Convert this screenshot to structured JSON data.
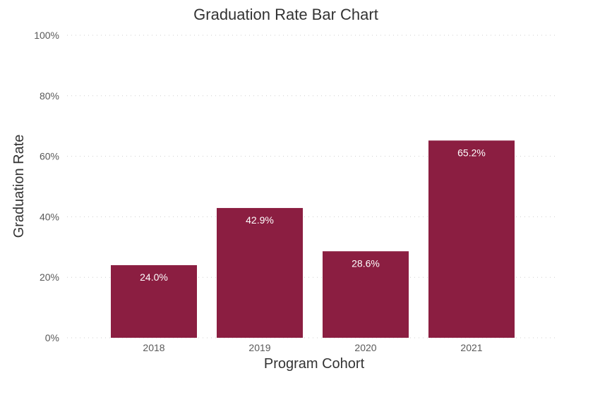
{
  "chart_data": {
    "type": "bar",
    "title": "Graduation Rate Bar Chart",
    "xlabel": "Program Cohort",
    "ylabel": "Graduation Rate",
    "categories": [
      "2018",
      "2019",
      "2020",
      "2021"
    ],
    "values": [
      24.0,
      42.9,
      28.6,
      65.2
    ],
    "data_labels": [
      "24.0%",
      "42.9%",
      "28.6%",
      "65.2%"
    ],
    "ylim": [
      0,
      100
    ],
    "yticks": [
      0,
      20,
      40,
      60,
      80,
      100
    ],
    "ytick_labels": [
      "0%",
      "20%",
      "40%",
      "60%",
      "80%",
      "100%"
    ],
    "grid": true,
    "bar_color": "#8b1e41"
  }
}
